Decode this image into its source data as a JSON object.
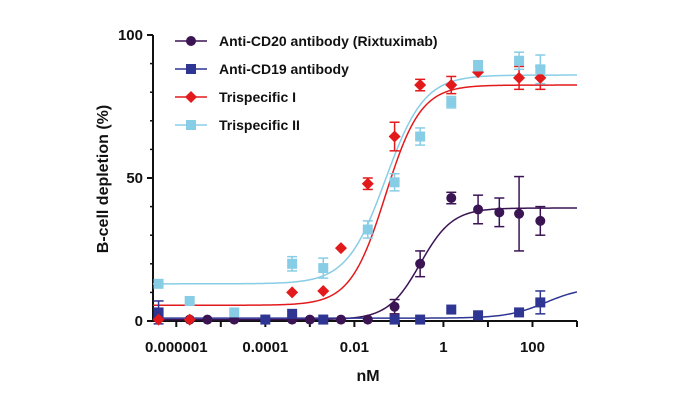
{
  "chart_data": {
    "type": "scatter",
    "title": "",
    "xlabel": "nM",
    "ylabel": "B-cell depletion (%)",
    "x_scale": "log",
    "xlim": [
      3e-07,
      1000
    ],
    "ylim": [
      0,
      100
    ],
    "x_ticks": [
      {
        "value": 1e-06,
        "label": "0.000001"
      },
      {
        "value": 0.0001,
        "label": "0.0001"
      },
      {
        "value": 0.01,
        "label": "0.01"
      },
      {
        "value": 1,
        "label": "1"
      },
      {
        "value": 100,
        "label": "100"
      }
    ],
    "y_ticks": [
      {
        "value": 0,
        "label": "0"
      },
      {
        "value": 50,
        "label": "50"
      },
      {
        "value": 100,
        "label": "100"
      }
    ],
    "grid": false,
    "legend_position": "top-left",
    "series": [
      {
        "name": "Anti-CD20 antibody (Rixtuximab)",
        "marker": "circle",
        "color": "#3b1454",
        "x": [
          4e-07,
          2e-06,
          5e-06,
          2e-05,
          0.0001,
          0.0004,
          0.001,
          0.002,
          0.005,
          0.02,
          0.08,
          0.3,
          1.5,
          6,
          18,
          50,
          150
        ],
        "y": [
          1,
          0.5,
          0.5,
          0.5,
          0.5,
          0.5,
          0.5,
          0.5,
          0.5,
          0.5,
          5,
          20,
          43,
          39,
          38,
          37.5,
          35
        ],
        "err": [
          1,
          1,
          1,
          1,
          1,
          1,
          1,
          1,
          1,
          1,
          2.5,
          4.5,
          2,
          5,
          5,
          13,
          5
        ],
        "fit": {
          "bottom": 0.5,
          "top": 39.5,
          "ec50": 0.3,
          "hill": 1.2
        }
      },
      {
        "name": "Anti-CD19 antibody",
        "marker": "square",
        "color": "#2e3592",
        "x": [
          4e-07,
          0.0001,
          0.0004,
          0.002,
          0.08,
          0.3,
          1.5,
          6,
          50,
          150
        ],
        "y": [
          3,
          0.5,
          2.5,
          0.5,
          0.5,
          0.5,
          4,
          2,
          3,
          6.5
        ],
        "err": [
          4,
          1,
          1,
          1,
          1,
          1,
          1,
          1,
          1,
          4
        ],
        "fit": {
          "bottom": 1,
          "top": 12,
          "ec50": 200,
          "hill": 1
        }
      },
      {
        "name": "Trispecific I",
        "marker": "diamond",
        "color": "#e31a1c",
        "x": [
          4e-07,
          2e-06,
          0.0004,
          0.002,
          0.005,
          0.02,
          0.08,
          0.3,
          1.5,
          6,
          50,
          150
        ],
        "y": [
          0.5,
          0.5,
          10,
          10.5,
          25.5,
          48,
          64.5,
          82.5,
          82.5,
          87,
          85,
          85
        ],
        "err": [
          1,
          1,
          1,
          1,
          1,
          2,
          5,
          2,
          3,
          1,
          4,
          4
        ],
        "fit": {
          "bottom": 5.5,
          "top": 82.5,
          "ec50": 0.05,
          "hill": 1.1
        }
      },
      {
        "name": "Trispecific II",
        "marker": "square",
        "color": "#88cde6",
        "x": [
          4e-07,
          2e-06,
          2e-05,
          0.0004,
          0.002,
          0.02,
          0.08,
          0.3,
          1.5,
          6,
          50,
          150
        ],
        "y": [
          13,
          7,
          3,
          20,
          18.5,
          32,
          48.5,
          64.5,
          76.5,
          89,
          91,
          88
        ],
        "err": [
          1,
          1,
          1,
          2.5,
          3.5,
          3,
          3,
          3,
          2,
          2,
          3,
          5
        ],
        "fit": {
          "bottom": 13,
          "top": 86,
          "ec50": 0.05,
          "hill": 1
        }
      }
    ]
  }
}
